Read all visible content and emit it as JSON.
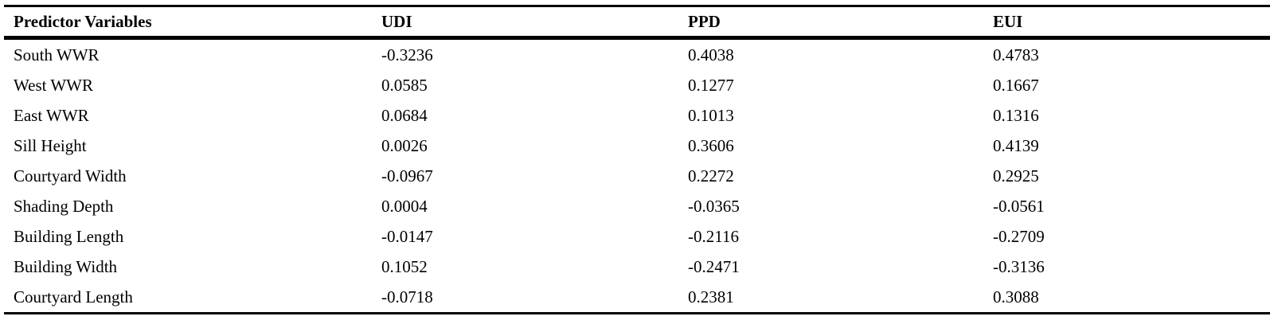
{
  "table": {
    "header": [
      "Predictor Variables",
      "UDI",
      "PPD",
      "EUI"
    ],
    "rows": [
      [
        "South WWR",
        "-0.3236",
        "0.4038",
        "0.4783"
      ],
      [
        "West WWR",
        "0.0585",
        "0.1277",
        "0.1667"
      ],
      [
        "East WWR",
        "0.0684",
        "0.1013",
        "0.1316"
      ],
      [
        "Sill Height",
        "0.0026",
        "0.3606",
        "0.4139"
      ],
      [
        "Courtyard Width",
        "-0.0967",
        "0.2272",
        "0.2925"
      ],
      [
        "Shading Depth",
        "0.0004",
        "-0.0365",
        "-0.0561"
      ],
      [
        "Building Length",
        "-0.0147",
        "-0.2116",
        "-0.2709"
      ],
      [
        "Building Width",
        "0.1052",
        "-0.2471",
        "-0.3136"
      ],
      [
        "Courtyard Length",
        "-0.0718",
        "0.2381",
        "0.3088"
      ]
    ]
  }
}
